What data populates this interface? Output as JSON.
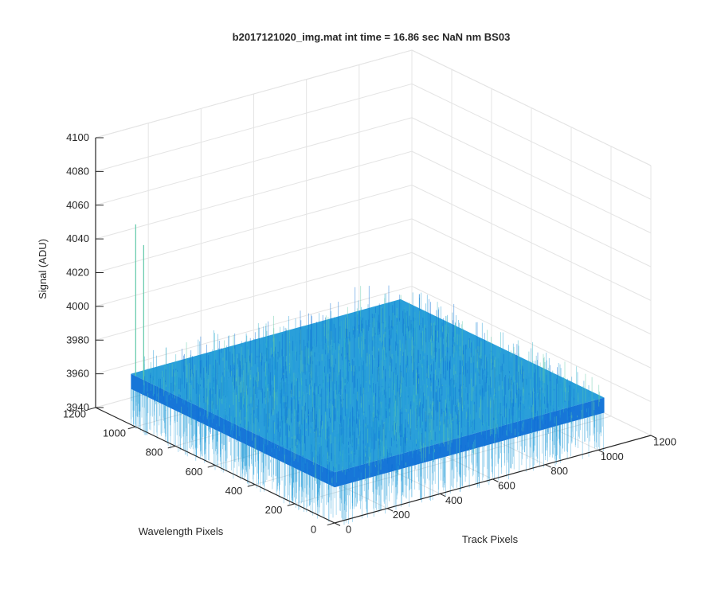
{
  "chart_data": {
    "type": "surface",
    "title": "b2017121020_img.mat int time = 16.86 sec  NaN nm BS03",
    "xlabel": "Track Pixels",
    "ylabel": "Wavelength Pixels",
    "zlabel": "Signal (ADU)",
    "x_ticks": [
      0,
      200,
      400,
      600,
      800,
      1000,
      1200
    ],
    "y_ticks": [
      0,
      200,
      400,
      600,
      800,
      1000,
      1200
    ],
    "z_ticks": [
      3940,
      3960,
      3980,
      4000,
      4020,
      4040,
      4060,
      4080,
      4100
    ],
    "xlim": [
      0,
      1200
    ],
    "ylim": [
      0,
      1200
    ],
    "zlim": [
      3940,
      4100
    ],
    "surface": {
      "x_extent": [
        1,
        1024
      ],
      "y_extent": [
        1,
        1024
      ],
      "mean_signal": 3970,
      "typical_range": [
        3955,
        3990
      ],
      "spikes": [
        {
          "x": 1,
          "y": 1000,
          "value": 4060
        },
        {
          "x": 1,
          "y": 960,
          "value": 4050
        }
      ]
    },
    "colormap": "parula",
    "colors": {
      "surface_dark": "#0b6fd6",
      "surface_mid": "#1f9ad8",
      "surface_light": "#35b4c6",
      "surface_highlight": "#5fc8a8",
      "grid": "#e4e4e4",
      "axis": "#262626",
      "text": "#262626"
    },
    "grid": true,
    "view": "3d-default"
  }
}
